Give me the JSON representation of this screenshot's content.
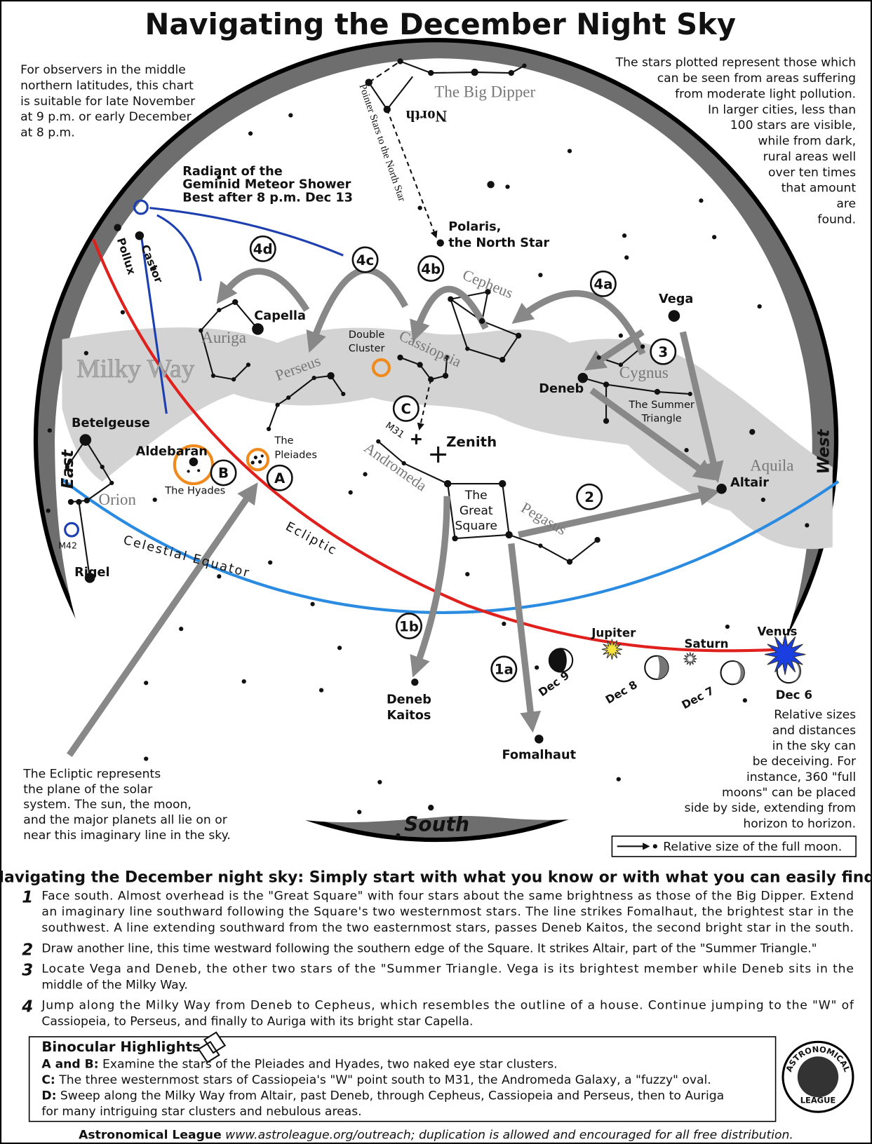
{
  "title": "Navigating the December Night Sky",
  "observer_note": [
    "For observers in the middle",
    "northern latitudes, this chart",
    "is suitable for late November",
    "at 9 p.m. or early December",
    "at 8 p.m."
  ],
  "light_pollution_note": [
    "The stars plotted represent those which",
    "can be seen from areas suffering",
    "from moderate light pollution.",
    "In larger cities, less than",
    "100 stars are visible,",
    "while from dark,",
    "rural areas well",
    "over ten times",
    "that amount",
    "are",
    "found."
  ],
  "map_labels": {
    "big_dipper": "The Big Dipper",
    "north": "North",
    "pointer_stars": "Pointer Stars to the North Star",
    "polaris": [
      "Polaris,",
      "the North Star"
    ],
    "geminid": [
      "Radiant of the",
      "Geminid Meteor Shower",
      "Best after 8 p.m. Dec 13"
    ],
    "pollux": "Pollux",
    "castor": "Castor",
    "step_4d": "4d",
    "step_4c": "4c",
    "step_4b": "4b",
    "step_4a": "4a",
    "step_3": "3",
    "step_2": "2",
    "step_1a": "1a",
    "step_1b": "1b",
    "spot_c": "C",
    "spot_b": "B",
    "spot_a": "A",
    "capella": "Capella",
    "auriga": "Auriga",
    "milky_way": "Milky Way",
    "perseus": "Perseus",
    "double_cluster": [
      "Double",
      "Cluster"
    ],
    "cassiopeia": "Cassiopeia",
    "cepheus": "Cepheus",
    "vega": "Vega",
    "deneb": "Deneb",
    "cygnus": "Cygnus",
    "summer_triangle": [
      "The Summer",
      "Triangle"
    ],
    "betelgeuse": "Betelgeuse",
    "east": "East",
    "aldebaran": "Aldebaran",
    "pleiades": [
      "The",
      "Pleiades"
    ],
    "hyades": "The Hyades",
    "orion": "Orion",
    "m42": "M42",
    "rigel": "Rigel",
    "celestial_equator": "Celestial Equator",
    "ecliptic": "Ecliptic",
    "m31": "M31",
    "zenith": "Zenith",
    "andromeda": "Andromeda",
    "great_square": [
      "The",
      "Great",
      "Square"
    ],
    "pegasus": "Pegasus",
    "aquila": "Aquila",
    "altair": "Altair",
    "west": "West",
    "jupiter": "Jupiter",
    "saturn": "Saturn",
    "venus": "Venus",
    "dec_9": "Dec 9",
    "dec_8": "Dec 8",
    "dec_7": "Dec 7",
    "dec_6": "Dec 6",
    "deneb_kaitos": [
      "Deneb",
      "Kaitos"
    ],
    "fomalhaut": "Fomalhaut",
    "south": "South"
  },
  "ecliptic_note": [
    "The Ecliptic represents",
    "the plane of the solar",
    "system. The sun, the moon,",
    "and the major planets all lie on or",
    "near this imaginary line in the sky."
  ],
  "moon_note": [
    "Relative sizes",
    "and distances",
    "in the sky can",
    "be deceiving. For",
    "instance, 360 \"full",
    "moons\" can be placed",
    "side by side, extending from",
    "horizon to horizon."
  ],
  "legend": "Relative size of the full moon.",
  "instructions": {
    "heading": "Navigating the December night sky: Simply start with what you know or with what you can easily find.",
    "steps": [
      {
        "number": "1",
        "lines": [
          "Face south. Almost overhead is the \"Great Square\" with four stars about the same brightness as those of the Big Dipper. Extend",
          "an imaginary line southward following the Square's two westernmost stars. The line strikes Fomalhaut, the brightest star in the",
          "southwest. A line extending southward from the two easternmost stars, passes Deneb Kaitos, the second bright star in the south."
        ]
      },
      {
        "number": "2",
        "lines": [
          "Draw another line, this time westward following the southern edge of the Square. It strikes Altair, part of the \"Summer Triangle.\""
        ]
      },
      {
        "number": "3",
        "lines": [
          "Locate Vega and Deneb, the other two stars of the \"Summer Triangle. Vega is its brightest member while Deneb sits in the",
          "middle of the Milky Way."
        ]
      },
      {
        "number": "4",
        "lines": [
          "Jump along the Milky Way from Deneb to Cepheus, which resembles the outline of a house. Continue jumping to the \"W\" of",
          "Cassiopeia, to Perseus, and finally to Auriga with its bright star Capella."
        ]
      }
    ]
  },
  "binocular": {
    "title": "Binocular Highlights",
    "items": [
      {
        "label": "A and B:",
        "lines": [
          " Examine the stars of the Pleiades and Hyades, two naked eye star clusters."
        ]
      },
      {
        "label": "C:",
        "lines": [
          " The three westernmost stars of Cassiopeia's \"W\" point south to M31, the Andromeda Galaxy, a \"fuzzy\" oval."
        ]
      },
      {
        "label": "D:",
        "lines": [
          " Sweep along the Milky Way from Altair, past Deneb, through Cepheus, Cassiopeia and Perseus, then to Auriga",
          "for many intriguing star clusters and nebulous areas."
        ]
      }
    ]
  },
  "logo": [
    "ASTRONOMICAL",
    "LEAGUE"
  ],
  "footer": {
    "organization": "Astronomical League",
    "text": "  www.astroleague.org/outreach; duplication is allowed and encouraged for all free distribution."
  }
}
